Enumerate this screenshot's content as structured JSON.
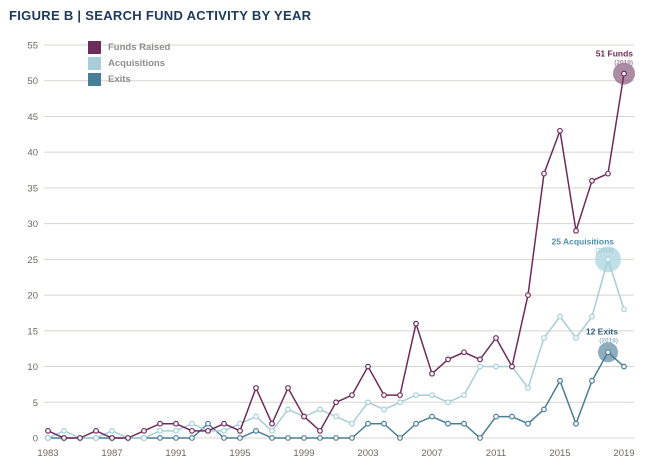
{
  "title": "FIGURE B | SEARCH FUND ACTIVITY BY YEAR",
  "colors": {
    "background": "#ffffff",
    "grid": "#d8d4ce",
    "tick": "#6e6862",
    "title": "#1d395c",
    "legend_text": "#8e8e8e"
  },
  "legend": {
    "items": [
      {
        "label": "Funds Raised"
      },
      {
        "label": "Acquisitions"
      },
      {
        "label": "Exits"
      }
    ]
  },
  "chart_data": {
    "type": "line",
    "title": "FIGURE B | SEARCH FUND ACTIVITY BY YEAR",
    "xlabel": "",
    "ylabel": "",
    "grid": true,
    "legend_position": "top-left",
    "ylim": [
      0,
      55
    ],
    "ytick_step": 5,
    "x": [
      1983,
      1984,
      1985,
      1986,
      1987,
      1988,
      1989,
      1990,
      1991,
      1992,
      1993,
      1994,
      1995,
      1996,
      1997,
      1998,
      1999,
      2000,
      2001,
      2002,
      2003,
      2004,
      2005,
      2006,
      2007,
      2008,
      2009,
      2010,
      2011,
      2012,
      2013,
      2014,
      2015,
      2016,
      2017,
      2018,
      2019
    ],
    "xticks": [
      1983,
      1987,
      1991,
      1995,
      1999,
      2003,
      2007,
      2011,
      2015,
      2019
    ],
    "series": [
      {
        "name": "Funds Raised",
        "color": "#6f2c5b",
        "values": [
          1,
          0,
          0,
          1,
          0,
          0,
          1,
          2,
          2,
          1,
          1,
          2,
          1,
          7,
          2,
          7,
          3,
          1,
          5,
          6,
          10,
          6,
          6,
          16,
          9,
          11,
          12,
          11,
          14,
          10,
          20,
          37,
          43,
          29,
          36,
          37,
          51
        ]
      },
      {
        "name": "Acquisitions",
        "color": "#a7ced9",
        "values": [
          0,
          1,
          0,
          0,
          1,
          0,
          0,
          1,
          1,
          2,
          1,
          1,
          2,
          3,
          1,
          4,
          3,
          4,
          3,
          2,
          5,
          4,
          5,
          6,
          6,
          5,
          6,
          10,
          10,
          10,
          7,
          14,
          17,
          14,
          17,
          25,
          18
        ]
      },
      {
        "name": "Exits",
        "color": "#497e97",
        "values": [
          0,
          0,
          0,
          0,
          0,
          0,
          0,
          0,
          0,
          0,
          2,
          0,
          0,
          1,
          0,
          0,
          0,
          0,
          0,
          0,
          2,
          2,
          0,
          2,
          3,
          2,
          2,
          0,
          3,
          3,
          2,
          4,
          8,
          2,
          8,
          12,
          10
        ]
      }
    ],
    "annotations": [
      {
        "label": "51 Funds",
        "year_label": "(2019)",
        "series": 0,
        "year": 2019,
        "value": 51,
        "circle_r": 11,
        "circle_fill": "#8f6386",
        "circle_opacity": 0.75,
        "label_color": "#6f2c5b",
        "sub_color": "#a687a0",
        "text_dx": 9,
        "text_dy": -17
      },
      {
        "label": "25 Acquisitions",
        "year_label": "(2018)",
        "series": 1,
        "year": 2018,
        "value": 25,
        "circle_r": 13,
        "circle_fill": "#b9dae3",
        "circle_opacity": 0.9,
        "label_color": "#4b8fae",
        "sub_color": "#a7ced9",
        "text_dx": 6,
        "text_dy": -15
      },
      {
        "label": "12 Exits",
        "year_label": "(2018)",
        "series": 2,
        "year": 2018,
        "value": 12,
        "circle_r": 10,
        "circle_fill": "#7a9db2",
        "circle_opacity": 0.85,
        "label_color": "#30617c",
        "sub_color": "#97b9c9",
        "text_dx": 10,
        "text_dy": -18
      }
    ]
  }
}
